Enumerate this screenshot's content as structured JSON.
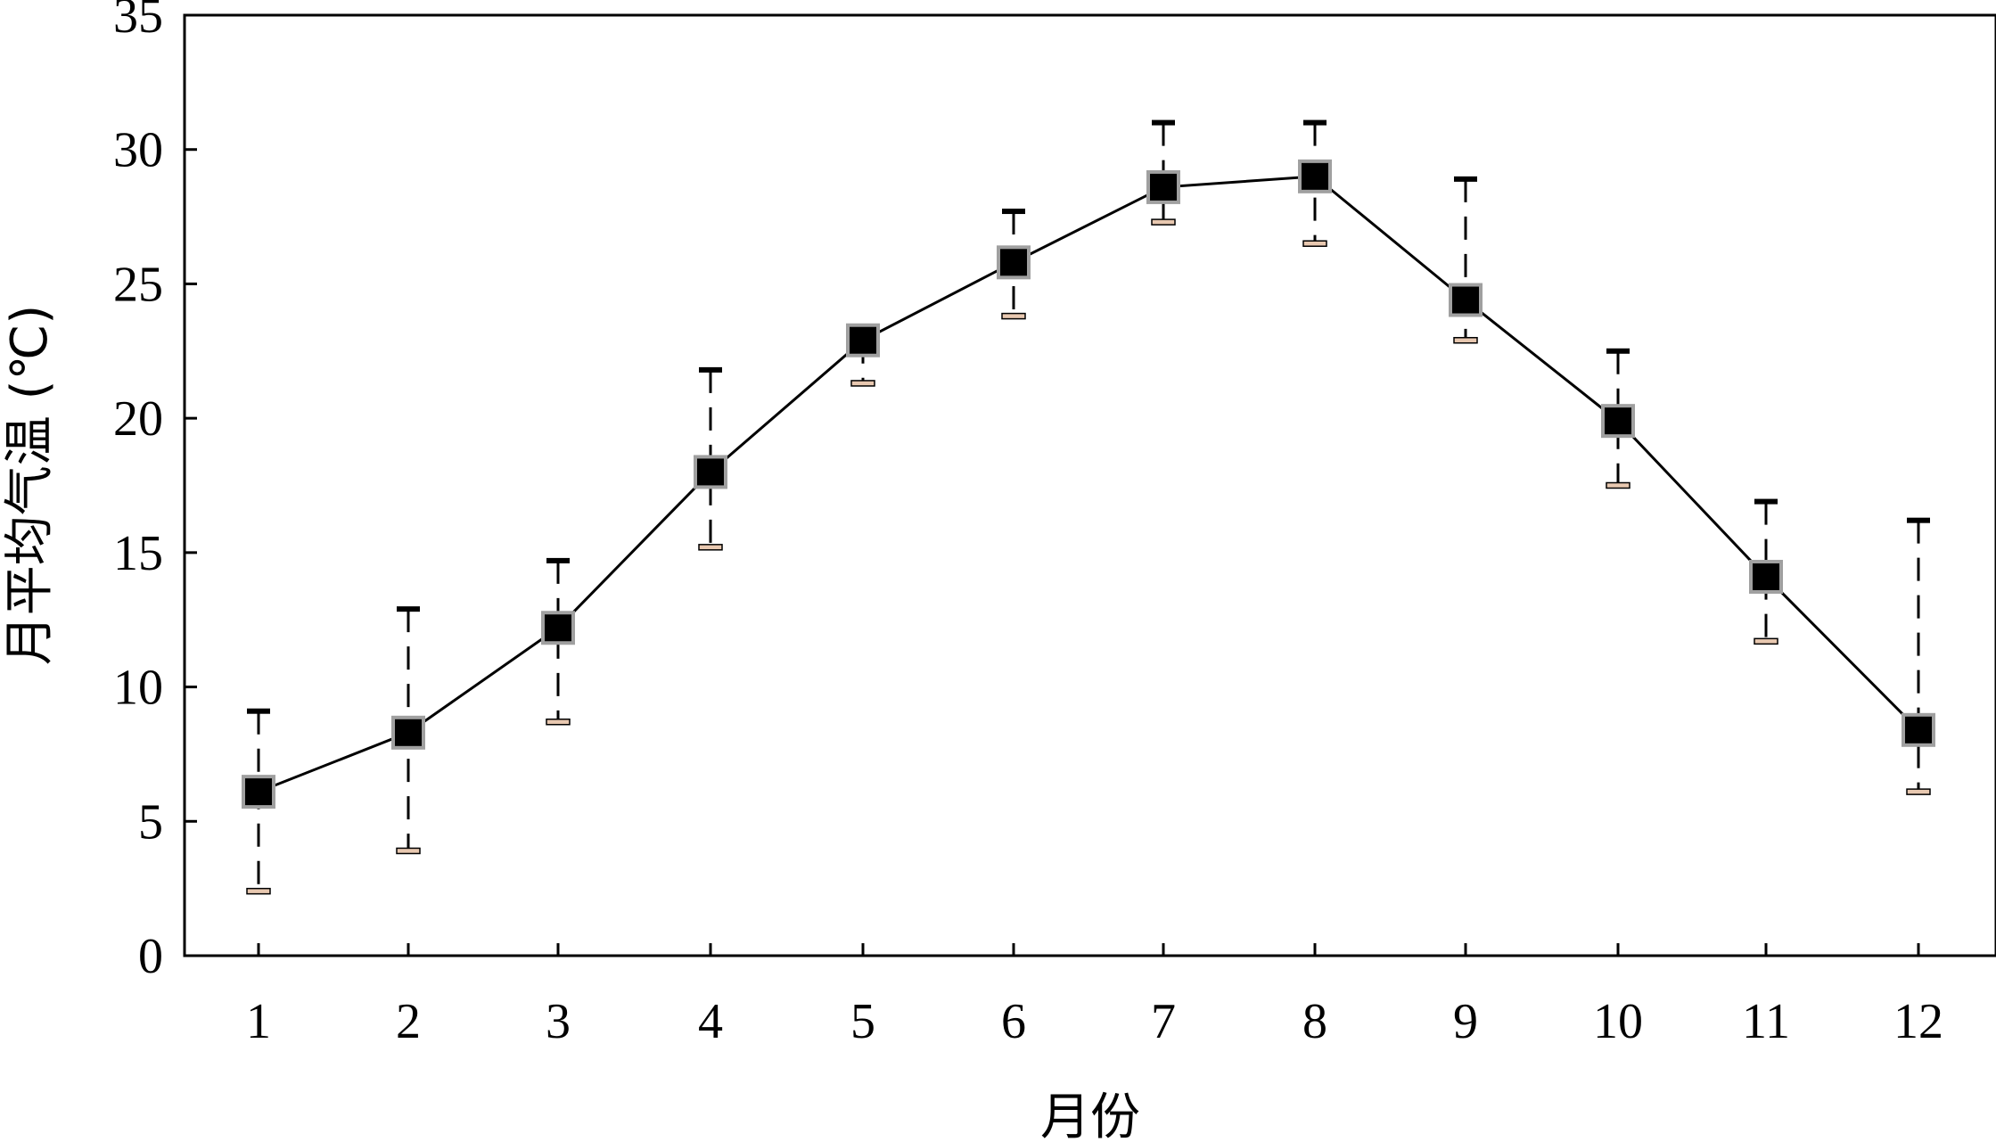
{
  "chart_data": {
    "type": "line",
    "xlabel": "月份",
    "ylabel": "月平均气温 (℃)",
    "ylim": [
      0,
      35
    ],
    "yticks": [
      "0",
      "5",
      "10",
      "15",
      "20",
      "25",
      "30",
      "35"
    ],
    "categories": [
      "1",
      "2",
      "3",
      "4",
      "5",
      "6",
      "7",
      "8",
      "9",
      "10",
      "11",
      "12"
    ],
    "series": [
      {
        "values": [
          6.1,
          8.3,
          12.2,
          18.0,
          22.9,
          25.8,
          28.6,
          29.0,
          24.4,
          19.9,
          14.1,
          8.4
        ],
        "max": [
          9.1,
          12.9,
          14.7,
          21.8,
          22.9,
          27.7,
          31.0,
          31.0,
          28.9,
          22.5,
          16.9,
          16.2
        ],
        "min": [
          2.4,
          3.9,
          8.7,
          15.2,
          21.3,
          23.8,
          27.3,
          26.5,
          22.9,
          17.5,
          11.7,
          6.1
        ]
      }
    ],
    "grid": false,
    "legend": "none",
    "colors": {
      "line": "#000000",
      "marker_fill": "#000000",
      "marker_border": "#a0a0a0",
      "max_cap": "#000000",
      "min_cap_fill": "#e8c8b0",
      "min_cap_stroke": "#000000"
    }
  }
}
